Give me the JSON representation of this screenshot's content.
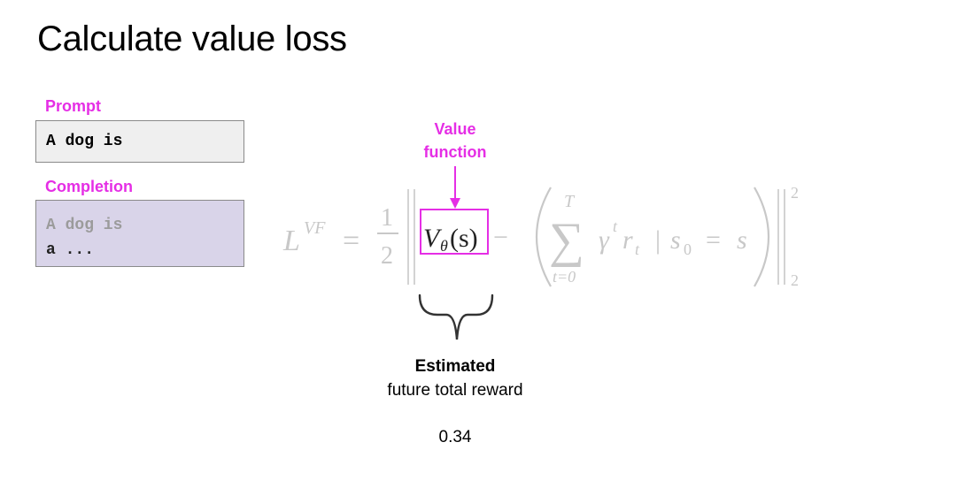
{
  "slide": {
    "title": "Calculate value loss"
  },
  "prompt": {
    "label": "Prompt",
    "text": "A dog is"
  },
  "completion": {
    "label": "Completion",
    "prior_text": "A dog is",
    "generated_text": "a ..."
  },
  "formula": {
    "lhs": "L",
    "lhs_superscript": "VF",
    "equals": "=",
    "frac_num": "1",
    "frac_den": "2",
    "value_term": "V",
    "value_subscript": "θ",
    "value_arg": "(s)",
    "minus": "−",
    "sum_upper": "T",
    "sum_lower": "t=0",
    "sum_symbol": "∑",
    "gamma": "γ",
    "gamma_exp": "t",
    "reward": "r",
    "reward_sub": "t",
    "given": "|",
    "s0": "s",
    "s0_sub": "0",
    "equals2": "=",
    "s": "s",
    "norm_exp": "2",
    "norm_sub": "2"
  },
  "value_function_label": {
    "line1": "Value",
    "line2": "function",
    "color": "#e52ee5"
  },
  "estimate": {
    "title": "Estimated",
    "subtitle": "future total reward",
    "value": "0.34"
  },
  "colors": {
    "accent": "#e52ee5",
    "prompt_bg": "#efefef",
    "completion_bg": "#d9d4e9",
    "formula_grey": "#c8c8c8"
  }
}
